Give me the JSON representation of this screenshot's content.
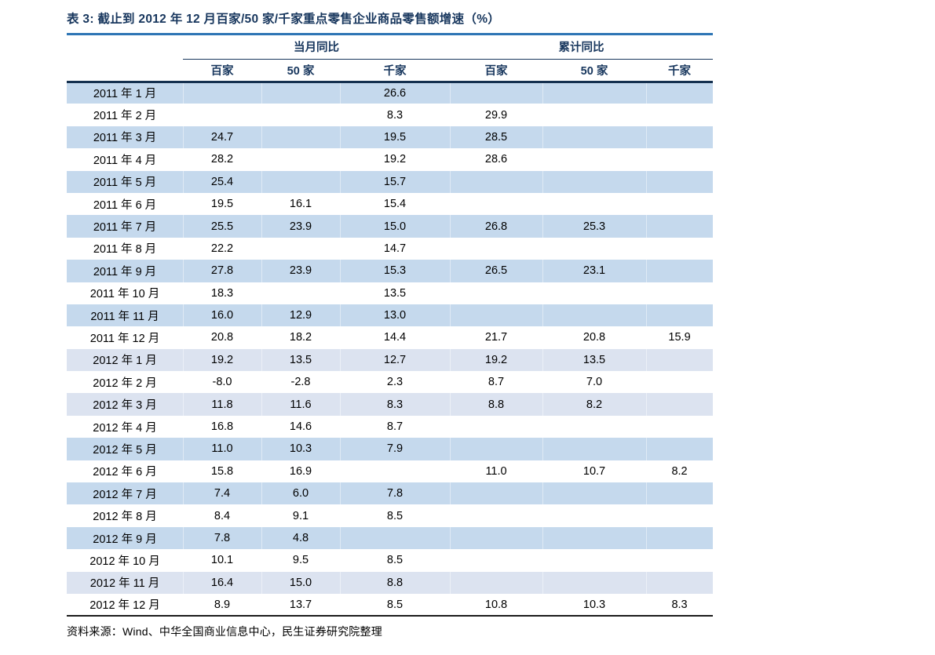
{
  "title": "表 3:  截止到 2012 年 12 月百家/50 家/千家重点零售企业商品零售额增速（%）",
  "header": {
    "group_monthly": "当月同比",
    "group_cumulative": "累计同比",
    "columns": [
      "百家",
      "50 家",
      "千家",
      "百家",
      "50 家",
      "千家"
    ]
  },
  "rows": [
    {
      "label": "2011 年 1 月",
      "values": [
        "",
        "",
        "26.6",
        "",
        "",
        ""
      ],
      "shade": "medium"
    },
    {
      "label": "2011 年 2 月",
      "values": [
        "",
        "",
        "8.3",
        "29.9",
        "",
        ""
      ],
      "shade": "none"
    },
    {
      "label": "2011 年 3 月",
      "values": [
        "24.7",
        "",
        "19.5",
        "28.5",
        "",
        ""
      ],
      "shade": "medium"
    },
    {
      "label": "2011 年 4 月",
      "values": [
        "28.2",
        "",
        "19.2",
        "28.6",
        "",
        ""
      ],
      "shade": "none"
    },
    {
      "label": "2011 年 5 月",
      "values": [
        "25.4",
        "",
        "15.7",
        "",
        "",
        ""
      ],
      "shade": "medium"
    },
    {
      "label": "2011 年 6 月",
      "values": [
        "19.5",
        "16.1",
        "15.4",
        "",
        "",
        ""
      ],
      "shade": "none"
    },
    {
      "label": "2011 年 7 月",
      "values": [
        "25.5",
        "23.9",
        "15.0",
        "26.8",
        "25.3",
        ""
      ],
      "shade": "medium"
    },
    {
      "label": "2011 年 8 月",
      "values": [
        "22.2",
        "",
        "14.7",
        "",
        "",
        ""
      ],
      "shade": "none"
    },
    {
      "label": "2011 年 9 月",
      "values": [
        "27.8",
        "23.9",
        "15.3",
        "26.5",
        "23.1",
        ""
      ],
      "shade": "medium"
    },
    {
      "label": "2011 年 10 月",
      "values": [
        "18.3",
        "",
        "13.5",
        "",
        "",
        ""
      ],
      "shade": "none"
    },
    {
      "label": "2011 年 11 月",
      "values": [
        "16.0",
        "12.9",
        "13.0",
        "",
        "",
        ""
      ],
      "shade": "medium"
    },
    {
      "label": "2011 年 12 月",
      "values": [
        "20.8",
        "18.2",
        "14.4",
        "21.7",
        "20.8",
        "15.9"
      ],
      "shade": "none"
    },
    {
      "label": "2012 年 1 月",
      "values": [
        "19.2",
        "13.5",
        "12.7",
        "19.2",
        "13.5",
        ""
      ],
      "shade": "light"
    },
    {
      "label": "2012 年 2 月",
      "values": [
        "-8.0",
        "-2.8",
        "2.3",
        "8.7",
        "7.0",
        ""
      ],
      "shade": "none"
    },
    {
      "label": "2012 年 3 月",
      "values": [
        "11.8",
        "11.6",
        "8.3",
        "8.8",
        "8.2",
        ""
      ],
      "shade": "light"
    },
    {
      "label": "2012 年 4 月",
      "values": [
        "16.8",
        "14.6",
        "8.7",
        "",
        "",
        ""
      ],
      "shade": "none"
    },
    {
      "label": "2012 年 5 月",
      "values": [
        "11.0",
        "10.3",
        "7.9",
        "",
        "",
        ""
      ],
      "shade": "medium"
    },
    {
      "label": "2012 年 6 月",
      "values": [
        "15.8",
        "16.9",
        "",
        "11.0",
        "10.7",
        "8.2"
      ],
      "shade": "none"
    },
    {
      "label": "2012 年 7 月",
      "values": [
        "7.4",
        "6.0",
        "7.8",
        "",
        "",
        ""
      ],
      "shade": "medium"
    },
    {
      "label": "2012 年 8 月",
      "values": [
        "8.4",
        "9.1",
        "8.5",
        "",
        "",
        ""
      ],
      "shade": "none"
    },
    {
      "label": "2012 年 9 月",
      "values": [
        "7.8",
        "4.8",
        "",
        "",
        "",
        ""
      ],
      "shade": "medium"
    },
    {
      "label": "2012 年 10 月",
      "values": [
        "10.1",
        "9.5",
        "8.5",
        "",
        "",
        ""
      ],
      "shade": "none"
    },
    {
      "label": "2012 年 11 月",
      "values": [
        "16.4",
        "15.0",
        "8.8",
        "",
        "",
        ""
      ],
      "shade": "light"
    },
    {
      "label": "2012 年 12 月",
      "values": [
        "8.9",
        "13.7",
        "8.5",
        "10.8",
        "10.3",
        "8.3"
      ],
      "shade": "none"
    }
  ],
  "source": "资料来源：Wind、中华全国商业信息中心，民生证券研究院整理",
  "colors": {
    "navy": "#17365D",
    "rule_blue": "#2E75B5",
    "stripe_medium": "#C5D9ED",
    "stripe_light": "#DCE3F0",
    "text": "#000000"
  }
}
